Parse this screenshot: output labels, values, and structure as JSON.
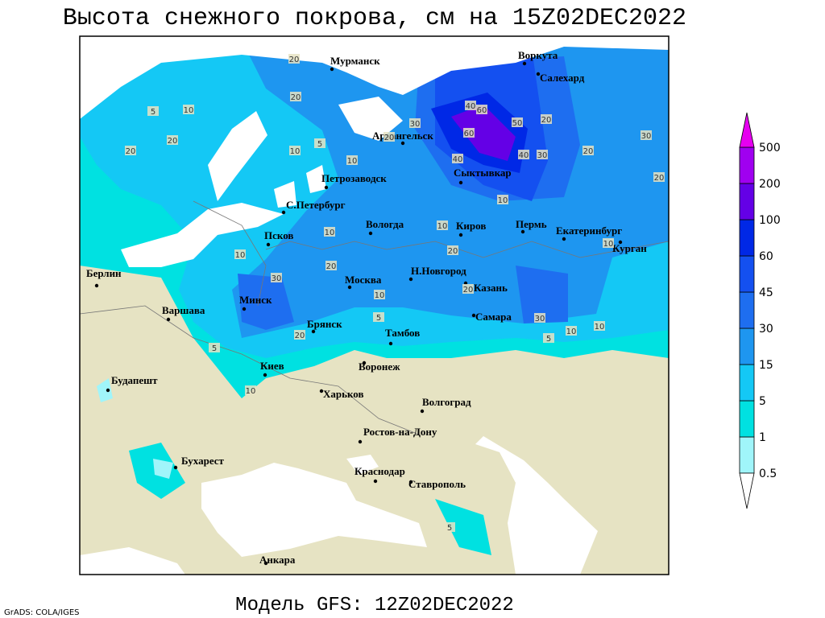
{
  "title": "Высота снежного покрова, см на 15Z02DEC2022",
  "footer": "Модель GFS: 12Z02DEC2022",
  "credit": "GrADS: COLA/IGES",
  "cities": [
    "Мурманск",
    "Воркута",
    "Салехард",
    "Архангельск",
    "Сыктывкар",
    "Петрозаводск",
    "С.Петербург",
    "Вологда",
    "Киров",
    "Пермь",
    "Екатеринбург",
    "Курган",
    "Псков",
    "Н.Новгород",
    "Москва",
    "Казань",
    "Берлин",
    "Минск",
    "Варшава",
    "Самара",
    "Брянск",
    "Тамбов",
    "Киев",
    "Воронеж",
    "Будапешт",
    "Харьков",
    "Волгоград",
    "Ростов-на-Дону",
    "Бухарест",
    "Краснодар",
    "Ставрополь",
    "Анкара"
  ],
  "contour_labels": [
    20,
    20,
    10,
    5,
    20,
    20,
    10,
    5,
    10,
    30,
    20,
    40,
    60,
    60,
    50,
    20,
    40,
    40,
    30,
    20,
    30,
    20,
    10,
    10,
    20,
    10,
    10,
    10,
    20,
    30,
    20,
    10,
    5,
    20,
    5,
    10,
    30,
    10,
    5,
    10,
    5
  ],
  "colorbar": {
    "levels": [
      0.5,
      1,
      5,
      15,
      30,
      45,
      60,
      100,
      200,
      500
    ],
    "colors": [
      "#ffffff",
      "#a0f5fa",
      "#00e1e1",
      "#14c8f5",
      "#1e96f0",
      "#1e6ef0",
      "#1450f0",
      "#0028e6",
      "#6400e6",
      "#a000f0",
      "#e600f0"
    ]
  }
}
